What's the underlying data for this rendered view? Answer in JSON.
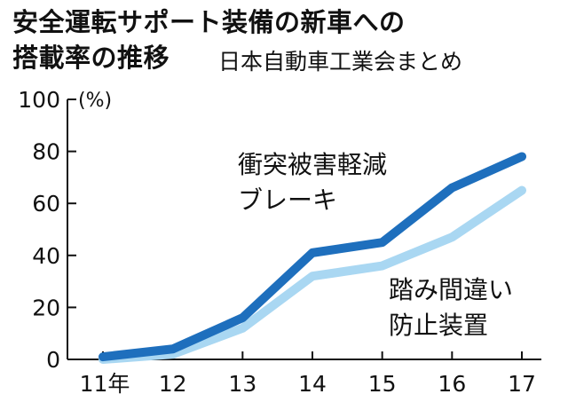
{
  "header": {
    "title_line1": "安全運転サポート装備の新車への",
    "title_line2": "搭載率の推移",
    "source": "日本自動車工業会まとめ"
  },
  "chart_data": {
    "type": "line",
    "title": "安全運転サポート装備の新車への搭載率の推移",
    "unit": "(%)",
    "categories": [
      "11年",
      "12",
      "13",
      "14",
      "15",
      "16",
      "17"
    ],
    "ylim": [
      0,
      100
    ],
    "yticks": [
      0,
      20,
      40,
      60,
      80,
      100
    ],
    "grid": false,
    "series": [
      {
        "name": "衝突被害軽減ブレーキ",
        "label_lines": [
          "衝突被害軽減",
          "ブレーキ"
        ],
        "color": "#1e6fbd",
        "values": [
          1,
          4,
          16,
          41,
          45,
          66,
          78
        ]
      },
      {
        "name": "踏み間違い防止装置",
        "label_lines": [
          "踏み間違い",
          "防止装置"
        ],
        "color": "#a9d7f2",
        "values": [
          0,
          2,
          12,
          32,
          36,
          47,
          65
        ]
      }
    ]
  }
}
